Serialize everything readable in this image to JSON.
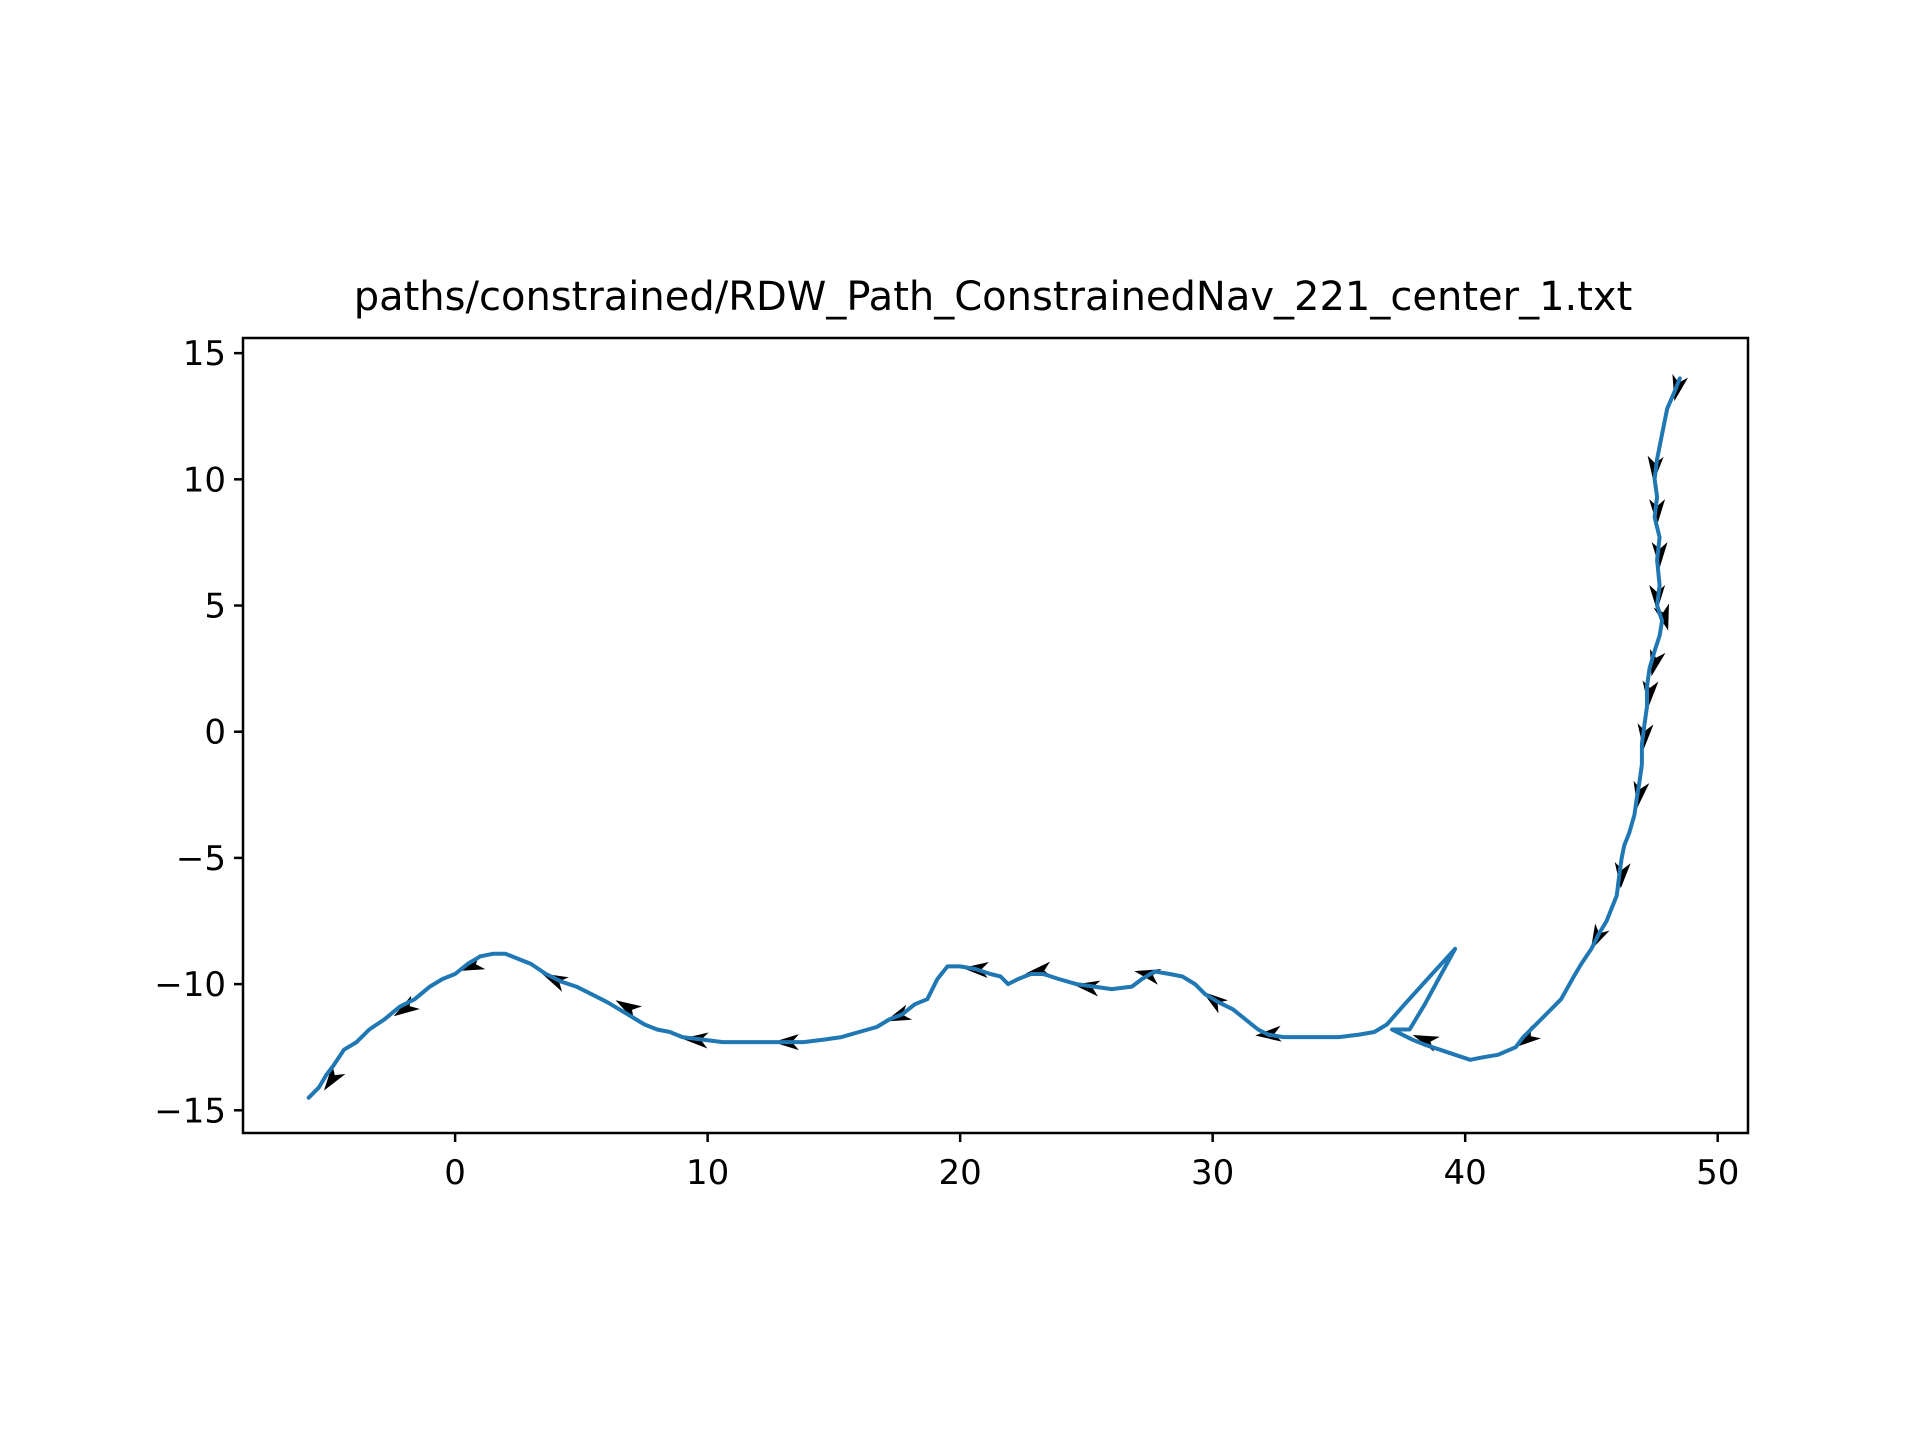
{
  "chart_data": {
    "type": "line",
    "title": "paths/constrained/RDW_Path_ConstrainedNav_221_center_1.txt",
    "xlabel": "",
    "ylabel": "",
    "xlim": [
      -8.4,
      51.2
    ],
    "ylim": [
      -15.9,
      15.6
    ],
    "grid": false,
    "x_ticks": [
      0,
      10,
      20,
      30,
      40,
      50
    ],
    "y_ticks": [
      15,
      10,
      5,
      0,
      -5,
      -10,
      -15
    ],
    "x_tick_labels": [
      "0",
      "10",
      "20",
      "30",
      "40",
      "50"
    ],
    "y_tick_labels": [
      "15",
      "10",
      "5",
      "0",
      "−5",
      "−10",
      "−15"
    ],
    "series": [
      {
        "color": "#1f77b4",
        "points": [
          [
            48.5,
            14.0
          ],
          [
            48.3,
            13.5
          ],
          [
            48.0,
            12.8
          ],
          [
            47.8,
            11.8
          ],
          [
            47.6,
            10.8
          ],
          [
            47.5,
            10.0
          ],
          [
            47.6,
            9.3
          ],
          [
            47.5,
            8.5
          ],
          [
            47.7,
            7.7
          ],
          [
            47.6,
            6.8
          ],
          [
            47.7,
            5.8
          ],
          [
            47.6,
            5.0
          ],
          [
            47.8,
            4.4
          ],
          [
            47.7,
            3.8
          ],
          [
            47.5,
            3.2
          ],
          [
            47.3,
            2.5
          ],
          [
            47.2,
            1.8
          ],
          [
            47.2,
            1.0
          ],
          [
            47.1,
            0.3
          ],
          [
            47.0,
            -0.5
          ],
          [
            47.0,
            -1.3
          ],
          [
            46.9,
            -2.0
          ],
          [
            46.8,
            -2.6
          ],
          [
            46.7,
            -3.3
          ],
          [
            46.5,
            -4.0
          ],
          [
            46.3,
            -4.5
          ],
          [
            46.2,
            -5.0
          ],
          [
            46.1,
            -5.7
          ],
          [
            46.0,
            -6.5
          ],
          [
            45.8,
            -7.0
          ],
          [
            45.6,
            -7.5
          ],
          [
            45.3,
            -8.0
          ],
          [
            45.0,
            -8.6
          ],
          [
            44.6,
            -9.2
          ],
          [
            44.3,
            -9.7
          ],
          [
            43.8,
            -10.6
          ],
          [
            43.3,
            -11.1
          ],
          [
            42.8,
            -11.6
          ],
          [
            42.3,
            -12.1
          ],
          [
            42.0,
            -12.5
          ],
          [
            41.3,
            -12.8
          ],
          [
            40.7,
            -12.9
          ],
          [
            40.2,
            -13.0
          ],
          [
            39.6,
            -12.8
          ],
          [
            39.0,
            -12.6
          ],
          [
            38.4,
            -12.4
          ],
          [
            37.9,
            -12.2
          ],
          [
            37.5,
            -12.0
          ],
          [
            37.1,
            -11.8
          ],
          [
            37.8,
            -11.8
          ],
          [
            38.4,
            -10.8
          ],
          [
            39.0,
            -9.7
          ],
          [
            39.6,
            -8.6
          ],
          [
            38.6,
            -9.7
          ],
          [
            37.6,
            -10.8
          ],
          [
            36.9,
            -11.6
          ],
          [
            36.4,
            -11.9
          ],
          [
            35.8,
            -12.0
          ],
          [
            35.0,
            -12.1
          ],
          [
            34.2,
            -12.1
          ],
          [
            33.5,
            -12.1
          ],
          [
            32.8,
            -12.1
          ],
          [
            32.2,
            -12.0
          ],
          [
            31.8,
            -11.8
          ],
          [
            31.3,
            -11.4
          ],
          [
            30.8,
            -11.0
          ],
          [
            30.2,
            -10.7
          ],
          [
            29.7,
            -10.4
          ],
          [
            29.3,
            -10.0
          ],
          [
            28.8,
            -9.7
          ],
          [
            28.3,
            -9.6
          ],
          [
            27.7,
            -9.5
          ],
          [
            27.2,
            -9.8
          ],
          [
            26.8,
            -10.1
          ],
          [
            26.0,
            -10.2
          ],
          [
            25.3,
            -10.1
          ],
          [
            24.6,
            -10.0
          ],
          [
            23.9,
            -9.8
          ],
          [
            23.3,
            -9.6
          ],
          [
            22.8,
            -9.6
          ],
          [
            22.3,
            -9.8
          ],
          [
            21.9,
            -10.0
          ],
          [
            21.6,
            -9.7
          ],
          [
            21.2,
            -9.6
          ],
          [
            20.6,
            -9.4
          ],
          [
            20.0,
            -9.3
          ],
          [
            19.5,
            -9.3
          ],
          [
            19.1,
            -9.8
          ],
          [
            18.7,
            -10.6
          ],
          [
            18.2,
            -10.8
          ],
          [
            17.7,
            -11.2
          ],
          [
            17.2,
            -11.4
          ],
          [
            16.7,
            -11.7
          ],
          [
            16.0,
            -11.9
          ],
          [
            15.3,
            -12.1
          ],
          [
            14.6,
            -12.2
          ],
          [
            13.8,
            -12.3
          ],
          [
            13.0,
            -12.3
          ],
          [
            12.2,
            -12.3
          ],
          [
            11.4,
            -12.3
          ],
          [
            10.6,
            -12.3
          ],
          [
            9.8,
            -12.2
          ],
          [
            9.0,
            -12.1
          ],
          [
            8.5,
            -11.9
          ],
          [
            8.0,
            -11.8
          ],
          [
            7.5,
            -11.6
          ],
          [
            7.0,
            -11.3
          ],
          [
            6.5,
            -11.0
          ],
          [
            6.0,
            -10.7
          ],
          [
            5.4,
            -10.4
          ],
          [
            4.8,
            -10.1
          ],
          [
            4.2,
            -9.9
          ],
          [
            3.6,
            -9.6
          ],
          [
            3.0,
            -9.2
          ],
          [
            2.5,
            -9.0
          ],
          [
            2.0,
            -8.8
          ],
          [
            1.5,
            -8.8
          ],
          [
            1.0,
            -8.9
          ],
          [
            0.5,
            -9.2
          ],
          [
            0.0,
            -9.6
          ],
          [
            -0.5,
            -9.8
          ],
          [
            -1.0,
            -10.1
          ],
          [
            -1.6,
            -10.6
          ],
          [
            -2.2,
            -10.9
          ],
          [
            -2.8,
            -11.4
          ],
          [
            -3.4,
            -11.8
          ],
          [
            -3.9,
            -12.3
          ],
          [
            -4.4,
            -12.6
          ],
          [
            -4.8,
            -13.2
          ],
          [
            -5.1,
            -13.6
          ],
          [
            -5.4,
            -14.1
          ],
          [
            -5.8,
            -14.5
          ]
        ]
      }
    ],
    "arrows": [
      [
        48.4,
        13.6,
        -0.3,
        -1.3
      ],
      [
        47.5,
        10.4,
        -0.1,
        -1.3
      ],
      [
        47.6,
        8.7,
        0.0,
        -1.3
      ],
      [
        47.7,
        7.0,
        0.0,
        -1.3
      ],
      [
        47.6,
        5.3,
        0.0,
        -1.3
      ],
      [
        47.9,
        4.5,
        0.3,
        -1.1
      ],
      [
        47.5,
        2.7,
        -0.3,
        -1.2
      ],
      [
        47.3,
        1.5,
        -0.1,
        -1.3
      ],
      [
        47.1,
        -0.2,
        -0.1,
        -1.3
      ],
      [
        46.9,
        -2.5,
        -0.2,
        -1.3
      ],
      [
        46.2,
        -5.7,
        -0.1,
        -1.3
      ],
      [
        45.2,
        -8.2,
        -0.6,
        -1.2
      ],
      [
        42.4,
        -12.2,
        -1.1,
        -0.8
      ],
      [
        38.4,
        -12.2,
        -1.3,
        0.5
      ],
      [
        32.2,
        -12.0,
        -1.4,
        -0.1
      ],
      [
        30.0,
        -10.6,
        -1.1,
        0.8
      ],
      [
        27.4,
        -9.6,
        -1.3,
        0.3
      ],
      [
        25.0,
        -10.1,
        -1.3,
        0.2
      ],
      [
        23.1,
        -9.5,
        -1.3,
        -0.2
      ],
      [
        20.6,
        -9.4,
        -1.3,
        0.1
      ],
      [
        17.5,
        -11.3,
        -1.3,
        -0.5
      ],
      [
        13.1,
        -12.3,
        -1.4,
        0.0
      ],
      [
        9.5,
        -12.2,
        -1.4,
        0.1
      ],
      [
        6.8,
        -10.9,
        -1.2,
        0.7
      ],
      [
        3.9,
        -9.8,
        -1.3,
        0.6
      ],
      [
        0.6,
        -9.3,
        -1.3,
        -0.5
      ],
      [
        -2.0,
        -11.0,
        -1.1,
        -0.7
      ],
      [
        -4.9,
        -13.8,
        -0.7,
        -1.0
      ]
    ]
  }
}
